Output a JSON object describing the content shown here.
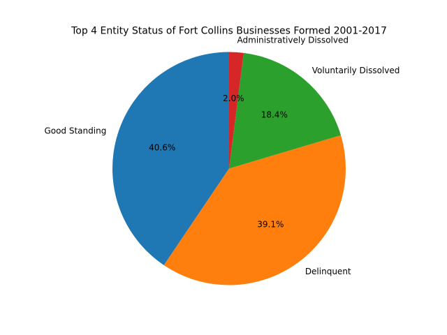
{
  "chart_data": {
    "type": "pie",
    "title": "Top 4 Entity Status of Fort Collins Businesses Formed 2001-2017",
    "labels": [
      "Good Standing",
      "Delinquent",
      "Voluntarily Dissolved",
      "Administratively Dissolved"
    ],
    "values": [
      40.6,
      39.1,
      18.4,
      2.0
    ],
    "pct_labels": [
      "40.6%",
      "39.1%",
      "18.4%",
      "2.0%"
    ],
    "colors": [
      "#1f77b4",
      "#ff7f0e",
      "#2ca02c",
      "#d62728"
    ],
    "start_angle_deg": 90,
    "direction": "counterclockwise"
  }
}
